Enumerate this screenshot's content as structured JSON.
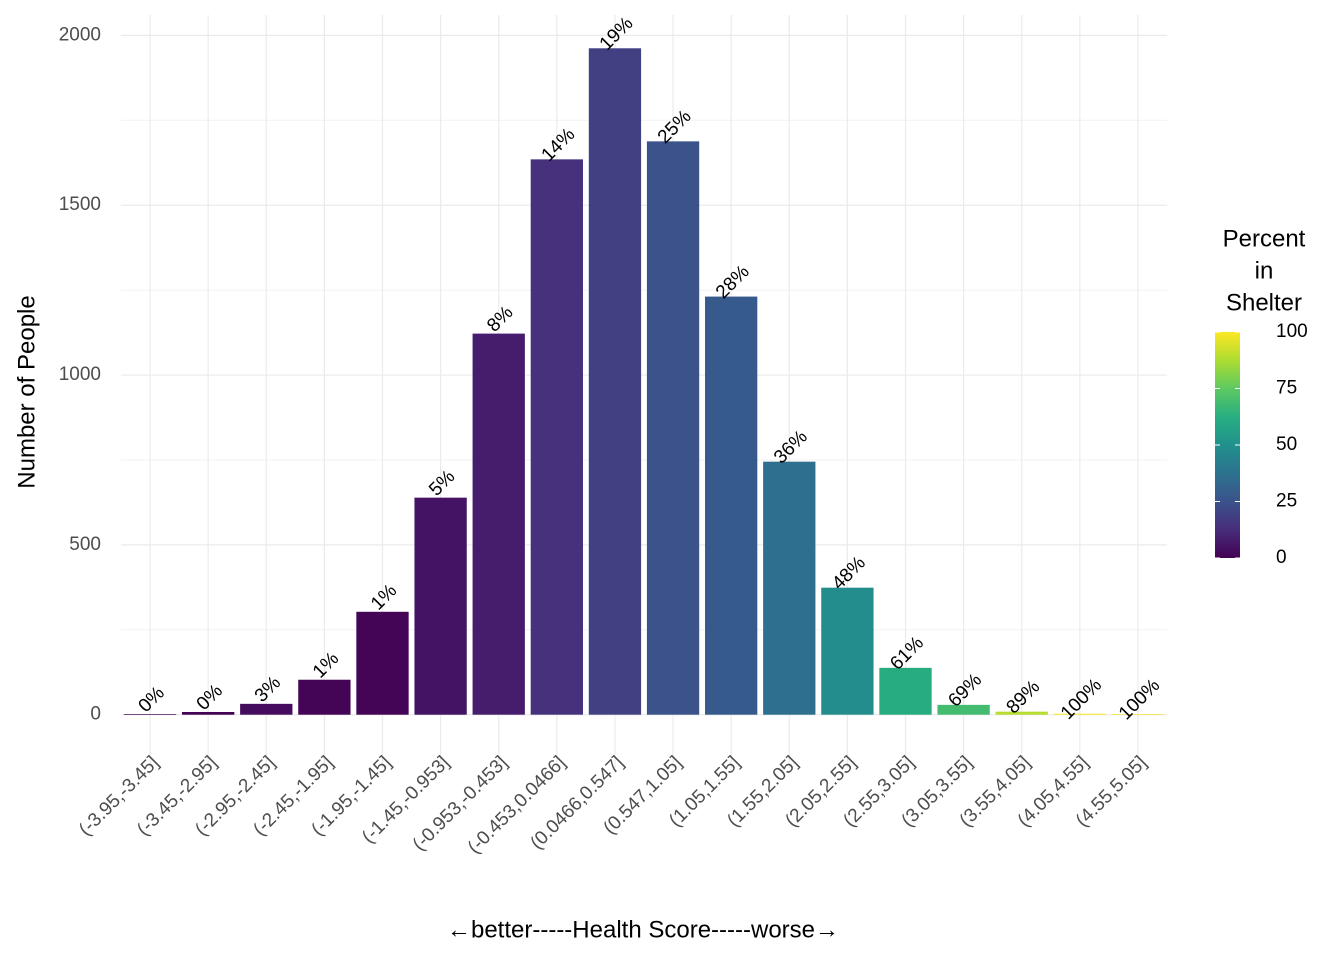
{
  "chart_data": {
    "type": "bar",
    "x_label": "←better-----Health Score-----worse→",
    "y_label": "Number of People",
    "categories": [
      "(-3.95,-3.45]",
      "(-3.45,-2.95]",
      "(-2.95,-2.45]",
      "(-2.45,-1.95]",
      "(-1.95,-1.45]",
      "(-1.45,-0.953]",
      "(-0.953,-0.453]",
      "(-0.453,0.0466]",
      "(0.0466,0.547]",
      "(0.547,1.05]",
      "(1.05,1.55]",
      "(1.55,2.05]",
      "(2.05,2.55]",
      "(2.55,3.05]",
      "(3.05,3.55]",
      "(3.55,4.05]",
      "(4.05,4.55]",
      "(4.55,5.05]"
    ],
    "values": [
      2,
      8,
      32,
      103,
      303,
      639,
      1122,
      1635,
      1962,
      1688,
      1231,
      745,
      374,
      138,
      29,
      9,
      3,
      2
    ],
    "percent": [
      0,
      0,
      3,
      1,
      1,
      5,
      8,
      14,
      19,
      25,
      28,
      36,
      48,
      61,
      69,
      89,
      100,
      100
    ],
    "percent_labels": [
      "0%",
      "0%",
      "3%",
      "1%",
      "1%",
      "5%",
      "8%",
      "14%",
      "19%",
      "25%",
      "28%",
      "36%",
      "48%",
      "61%",
      "69%",
      "89%",
      "100%",
      "100%"
    ],
    "ylim": [
      -98,
      2060
    ],
    "yticks": [
      0,
      500,
      1000,
      1500,
      2000
    ],
    "minor_yticks": [
      250,
      750,
      1250,
      1750
    ],
    "grid": true,
    "colorbar": {
      "title": [
        "Percent",
        "in",
        "Shelter"
      ],
      "lim": [
        0,
        100
      ],
      "ticks": [
        0,
        25,
        50,
        75,
        100
      ],
      "colors": [
        "#440154",
        "#472d7b",
        "#3b528b",
        "#2c728e",
        "#21918c",
        "#28ae80",
        "#5ec962",
        "#addc30",
        "#fde725"
      ]
    }
  }
}
